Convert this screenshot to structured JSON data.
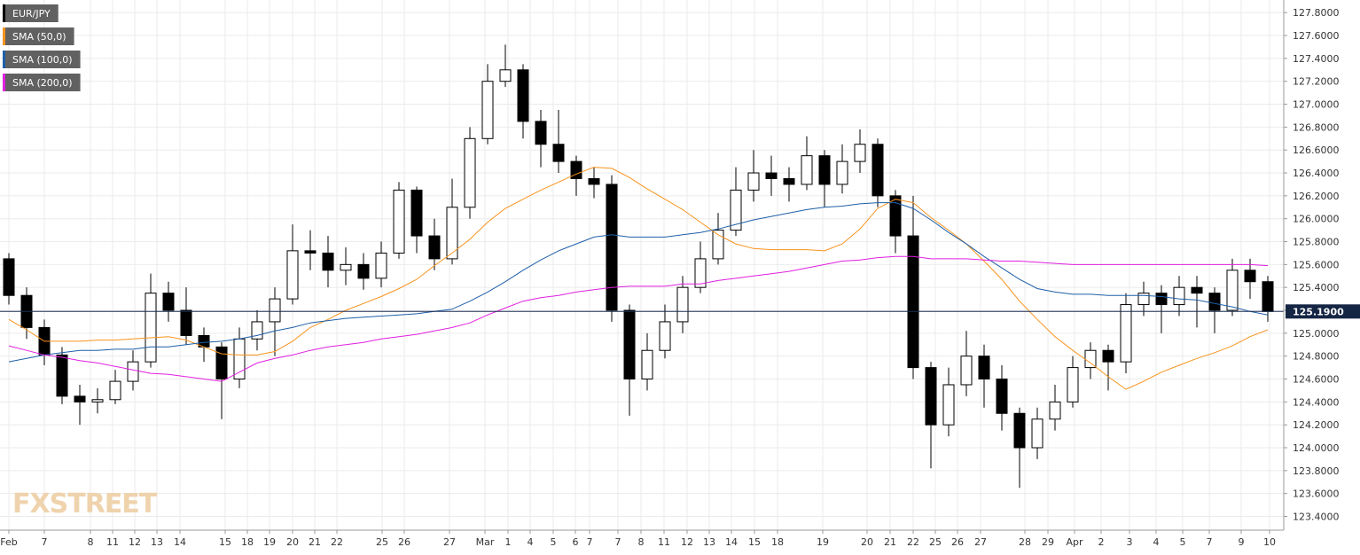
{
  "chart_data": {
    "type": "candlestick",
    "watermark": "FXSTREET",
    "ylim": [
      123.28,
      127.91
    ],
    "yticks": [
      {
        "value": 123.4,
        "label": "123.4000"
      },
      {
        "value": 123.6,
        "label": "123.6000"
      },
      {
        "value": 123.8,
        "label": "123.8000"
      },
      {
        "value": 124.0,
        "label": "124.0000"
      },
      {
        "value": 124.2,
        "label": "124.2000"
      },
      {
        "value": 124.4,
        "label": "124.4000"
      },
      {
        "value": 124.6,
        "label": "124.6000"
      },
      {
        "value": 124.8,
        "label": "124.8000"
      },
      {
        "value": 125.0,
        "label": "125.0000"
      },
      {
        "value": 125.2,
        "label": "125.2000"
      },
      {
        "value": 125.4,
        "label": "125.4000"
      },
      {
        "value": 125.6,
        "label": "125.6000"
      },
      {
        "value": 125.8,
        "label": "125.8000"
      },
      {
        "value": 126.0,
        "label": "126.0000"
      },
      {
        "value": 126.2,
        "label": "126.2000"
      },
      {
        "value": 126.4,
        "label": "126.4000"
      },
      {
        "value": 126.6,
        "label": "126.6000"
      },
      {
        "value": 126.8,
        "label": "126.8000"
      },
      {
        "value": 127.0,
        "label": "127.0000"
      },
      {
        "value": 127.2,
        "label": "127.2000"
      },
      {
        "value": 127.4,
        "label": "127.4000"
      },
      {
        "value": 127.6,
        "label": "127.6000"
      },
      {
        "value": 127.8,
        "label": "127.8000"
      }
    ],
    "xlim": [
      -0.5,
      71.9
    ],
    "xticks": [
      {
        "value": 0,
        "label": "Feb"
      },
      {
        "value": 2,
        "label": "7"
      },
      {
        "value": 4.6,
        "label": "8"
      },
      {
        "value": 5.85,
        "label": "11"
      },
      {
        "value": 7.1,
        "label": "12"
      },
      {
        "value": 8.35,
        "label": "13"
      },
      {
        "value": 9.65,
        "label": "14"
      },
      {
        "value": 12.2,
        "label": "15"
      },
      {
        "value": 13.45,
        "label": "18"
      },
      {
        "value": 14.7,
        "label": "19"
      },
      {
        "value": 16,
        "label": "20"
      },
      {
        "value": 17.25,
        "label": "21"
      },
      {
        "value": 18.5,
        "label": "22"
      },
      {
        "value": 21.05,
        "label": "25"
      },
      {
        "value": 22.3,
        "label": "26"
      },
      {
        "value": 24.85,
        "label": "27"
      },
      {
        "value": 26.85,
        "label": "Mar"
      },
      {
        "value": 28.15,
        "label": "1"
      },
      {
        "value": 29.4,
        "label": "4"
      },
      {
        "value": 30.7,
        "label": "5"
      },
      {
        "value": 31.95,
        "label": "6"
      },
      {
        "value": 32.75,
        "label": "7"
      },
      {
        "value": 34.35,
        "label": "7"
      },
      {
        "value": 35.65,
        "label": "8"
      },
      {
        "value": 36.95,
        "label": "11"
      },
      {
        "value": 38.25,
        "label": "12"
      },
      {
        "value": 39.5,
        "label": "13"
      },
      {
        "value": 40.75,
        "label": "14"
      },
      {
        "value": 42.05,
        "label": "15"
      },
      {
        "value": 43.35,
        "label": "18"
      },
      {
        "value": 45.9,
        "label": "19"
      },
      {
        "value": 48.4,
        "label": "20"
      },
      {
        "value": 49.7,
        "label": "21"
      },
      {
        "value": 51,
        "label": "22"
      },
      {
        "value": 52.25,
        "label": "25"
      },
      {
        "value": 53.5,
        "label": "26"
      },
      {
        "value": 54.8,
        "label": "27"
      },
      {
        "value": 57.3,
        "label": "28"
      },
      {
        "value": 58.6,
        "label": "29"
      },
      {
        "value": 60.1,
        "label": "Apr"
      },
      {
        "value": 61.6,
        "label": "2"
      },
      {
        "value": 63.2,
        "label": "3"
      },
      {
        "value": 64.7,
        "label": "4"
      },
      {
        "value": 66.2,
        "label": "5"
      },
      {
        "value": 67.7,
        "label": "7"
      },
      {
        "value": 69.5,
        "label": "9"
      },
      {
        "value": 71.1,
        "label": "10"
      }
    ],
    "grid": true,
    "last_price": 125.19,
    "last_price_label": "125.1900",
    "series": [
      {
        "name": "EUR/JPY",
        "color": "#000000",
        "up_color": "#ffffff",
        "open": [
          125.65,
          125.33,
          125.05,
          124.81,
          124.45,
          124.4,
          124.42,
          124.58,
          124.75,
          125.35,
          125.2,
          124.98,
          124.88,
          124.6,
          124.95,
          125.1,
          125.3,
          125.72,
          125.7,
          125.55,
          125.6,
          125.48,
          125.7,
          126.25,
          125.85,
          125.65,
          126.1,
          126.7,
          127.2,
          127.3,
          126.85,
          126.65,
          126.5,
          126.35,
          126.3,
          125.2,
          124.6,
          124.85,
          125.1,
          125.4,
          125.65,
          125.9,
          126.25,
          126.4,
          126.35,
          126.3,
          126.55,
          126.3,
          126.5,
          126.65,
          126.2,
          125.85,
          124.7,
          124.2,
          124.55,
          124.8,
          124.6,
          124.3,
          124.0,
          124.25,
          124.4,
          124.7,
          124.85,
          124.75,
          125.25,
          125.35,
          125.25,
          125.4,
          125.35,
          125.2,
          125.55,
          125.45
        ],
        "high": [
          125.7,
          125.4,
          125.12,
          124.88,
          124.55,
          124.52,
          124.68,
          124.85,
          125.52,
          125.45,
          125.4,
          125.05,
          124.92,
          125.05,
          125.2,
          125.4,
          125.95,
          125.9,
          125.85,
          125.75,
          125.7,
          125.8,
          126.32,
          126.28,
          126.0,
          126.35,
          126.8,
          127.35,
          127.52,
          127.35,
          126.95,
          126.95,
          126.55,
          126.45,
          126.38,
          125.25,
          125.0,
          125.25,
          125.5,
          125.8,
          126.05,
          126.45,
          126.6,
          126.55,
          126.45,
          126.72,
          126.6,
          126.65,
          126.78,
          126.7,
          126.25,
          126.2,
          124.75,
          124.7,
          125.02,
          124.9,
          124.72,
          124.35,
          124.35,
          124.55,
          124.8,
          124.92,
          124.9,
          125.35,
          125.45,
          125.42,
          125.5,
          125.5,
          125.4,
          125.65,
          125.65,
          125.5
        ],
        "low": [
          125.25,
          124.95,
          124.72,
          124.38,
          124.2,
          124.3,
          124.38,
          124.5,
          124.7,
          125.1,
          124.9,
          124.75,
          124.25,
          124.52,
          124.85,
          124.8,
          125.25,
          125.55,
          125.4,
          125.42,
          125.38,
          125.4,
          125.65,
          125.7,
          125.55,
          125.6,
          126.0,
          126.65,
          127.15,
          126.7,
          126.45,
          126.4,
          126.2,
          126.18,
          125.1,
          124.28,
          124.5,
          124.78,
          125.0,
          125.35,
          125.6,
          125.85,
          126.15,
          126.2,
          126.15,
          126.25,
          126.1,
          126.22,
          126.4,
          126.1,
          125.7,
          124.6,
          123.82,
          124.1,
          124.45,
          124.35,
          124.15,
          123.65,
          123.9,
          124.15,
          124.35,
          124.6,
          124.5,
          124.65,
          125.15,
          125.0,
          125.15,
          125.05,
          125.0,
          125.15,
          125.3,
          125.1
        ],
        "close": [
          125.33,
          125.05,
          124.81,
          124.45,
          124.4,
          124.42,
          124.58,
          124.75,
          125.35,
          125.2,
          124.98,
          124.88,
          124.6,
          124.95,
          125.1,
          125.3,
          125.72,
          125.7,
          125.55,
          125.6,
          125.48,
          125.7,
          126.25,
          125.85,
          125.65,
          126.1,
          126.7,
          127.2,
          127.3,
          126.85,
          126.65,
          126.5,
          126.35,
          126.3,
          125.2,
          124.6,
          124.85,
          125.1,
          125.4,
          125.65,
          125.9,
          126.25,
          126.4,
          126.35,
          126.3,
          126.55,
          126.3,
          126.5,
          126.65,
          126.2,
          125.85,
          124.7,
          124.2,
          124.55,
          124.8,
          124.6,
          124.3,
          124.0,
          124.25,
          124.4,
          124.7,
          124.85,
          124.75,
          125.25,
          125.35,
          125.25,
          125.4,
          125.35,
          125.2,
          125.55,
          125.45,
          125.19
        ]
      },
      {
        "name": "SMA (50,0)",
        "color": "#f7931e",
        "values": [
          125.12,
          125.03,
          124.93,
          124.93,
          124.93,
          124.94,
          124.94,
          124.95,
          124.96,
          124.97,
          124.94,
          124.88,
          124.82,
          124.81,
          124.81,
          124.84,
          124.93,
          125.05,
          125.12,
          125.2,
          125.26,
          125.32,
          125.39,
          125.47,
          125.59,
          125.7,
          125.82,
          125.97,
          126.09,
          126.17,
          126.25,
          126.32,
          126.39,
          126.45,
          126.44,
          126.36,
          126.26,
          126.17,
          126.08,
          125.97,
          125.86,
          125.78,
          125.74,
          125.73,
          125.73,
          125.73,
          125.72,
          125.78,
          125.91,
          126.09,
          126.17,
          126.14,
          126.01,
          125.9,
          125.78,
          125.63,
          125.47,
          125.28,
          125.12,
          124.97,
          124.85,
          124.74,
          124.62,
          124.51,
          124.58,
          124.66,
          124.72,
          124.78,
          124.83,
          124.89,
          124.97,
          125.03
        ]
      },
      {
        "name": "SMA (100,0)",
        "color": "#1f5fa8",
        "values": [
          124.75,
          124.78,
          124.81,
          124.83,
          124.85,
          124.85,
          124.86,
          124.86,
          124.88,
          124.88,
          124.9,
          124.92,
          124.93,
          124.95,
          124.98,
          125.02,
          125.05,
          125.09,
          125.11,
          125.13,
          125.14,
          125.15,
          125.16,
          125.17,
          125.19,
          125.21,
          125.28,
          125.36,
          125.45,
          125.55,
          125.64,
          125.72,
          125.78,
          125.84,
          125.86,
          125.84,
          125.84,
          125.84,
          125.86,
          125.88,
          125.91,
          125.95,
          125.99,
          126.02,
          126.05,
          126.08,
          126.1,
          126.11,
          126.13,
          126.14,
          126.14,
          126.09,
          125.99,
          125.88,
          125.78,
          125.67,
          125.57,
          125.47,
          125.39,
          125.36,
          125.34,
          125.34,
          125.33,
          125.33,
          125.33,
          125.32,
          125.3,
          125.29,
          125.26,
          125.23,
          125.19,
          125.16
        ]
      },
      {
        "name": "SMA (200,0)",
        "color": "#e020e0",
        "values": [
          124.89,
          124.85,
          124.81,
          124.79,
          124.76,
          124.74,
          124.71,
          124.68,
          124.65,
          124.64,
          124.62,
          124.6,
          124.58,
          124.66,
          124.74,
          124.78,
          124.81,
          124.85,
          124.88,
          124.9,
          124.92,
          124.95,
          124.97,
          124.99,
          125.02,
          125.05,
          125.09,
          125.16,
          125.22,
          125.28,
          125.31,
          125.33,
          125.36,
          125.38,
          125.4,
          125.41,
          125.41,
          125.41,
          125.43,
          125.43,
          125.46,
          125.48,
          125.5,
          125.52,
          125.54,
          125.57,
          125.6,
          125.63,
          125.64,
          125.66,
          125.67,
          125.67,
          125.65,
          125.65,
          125.65,
          125.64,
          125.63,
          125.63,
          125.62,
          125.61,
          125.6,
          125.6,
          125.6,
          125.6,
          125.6,
          125.6,
          125.6,
          125.6,
          125.6,
          125.6,
          125.6,
          125.59
        ]
      }
    ]
  }
}
